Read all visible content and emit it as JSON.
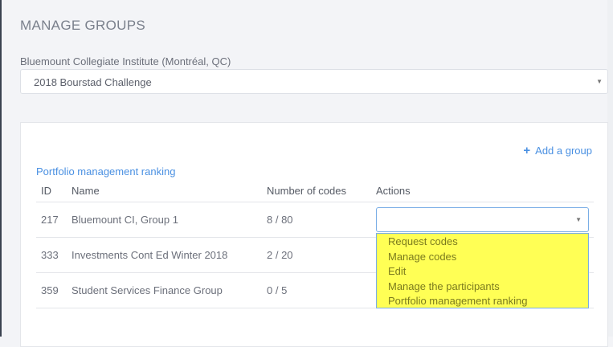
{
  "header": {
    "title": "MANAGE GROUPS"
  },
  "school": {
    "label": "Bluemount Collegiate Institute (Montréal, QC)",
    "selected": "2018 Bourstad Challenge"
  },
  "card": {
    "add_group": "Add a group",
    "ranking_link": "Portfolio management ranking",
    "columns": [
      "ID",
      "Name",
      "Number of codes",
      "Actions"
    ],
    "rows": [
      {
        "id": "217",
        "name": "Bluemount CI, Group 1",
        "codes": "8 / 80"
      },
      {
        "id": "333",
        "name": "Investments Cont Ed Winter 2018",
        "codes": "2 / 20"
      },
      {
        "id": "359",
        "name": "Student Services Finance Group",
        "codes": "0 / 5"
      }
    ],
    "actions_menu": [
      "Request codes",
      "Manage codes",
      "Edit",
      "Manage the participants",
      "Portfolio management ranking"
    ]
  },
  "colors": {
    "accent": "#4a90e2",
    "highlight": "#ffff55"
  }
}
